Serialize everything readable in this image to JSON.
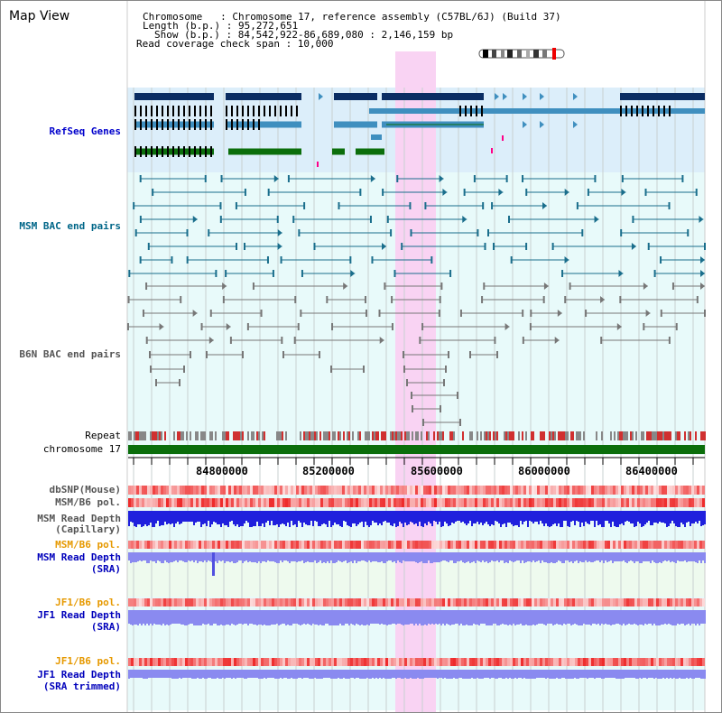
{
  "title": "Map View",
  "info": {
    "chromosome_line": "Chromosome   : Chromosome 17, reference assembly (C57BL/6J) (Build 37)",
    "length_line": "Length (b.p.) : 95,272,651",
    "show_line": "Show (b.p.) : 84,542,922-86,689,080 : 2,146,159 bp",
    "coverage_line": "Read coverage check span : 10,000"
  },
  "tracks": {
    "refseq": "RefSeq Genes",
    "msm_bac": "MSM BAC end pairs",
    "b6n_bac": "B6N BAC end pairs",
    "repeat": "Repeat",
    "chromosome": "chromosome 17",
    "dbsnp": "dbSNP(Mouse)",
    "msm_b6_pol": "MSM/B6 pol.",
    "msm_depth_cap_1": "MSM Read Depth",
    "msm_depth_cap_2": "(Capillary)",
    "msm_b6_pol_2": "MSM/B6 pol.",
    "msm_depth_sra_1": "MSM Read Depth",
    "msm_depth_sra_2": "(SRA)",
    "jf1_b6_pol": "JF1/B6 pol.",
    "jf1_depth_sra_1": "JF1 Read Depth",
    "jf1_depth_sra_2": "(SRA)",
    "jf1_b6_pol_2": "JF1/B6 pol.",
    "jf1_depth_trim_1": "JF1 Read Depth",
    "jf1_depth_trim_2": "(SRA trimmed)"
  },
  "axis_ticks": [
    "84800000",
    "85200000",
    "85600000",
    "86000000",
    "86400000"
  ],
  "colors": {
    "refseq_bg": "#dceefa",
    "track_bg": "#e8fafa",
    "highlight": "#f9d3f3",
    "gene_dark": "#0b2d63",
    "gene_mid": "#3f8fbf",
    "gene_green": "#0b6e0b",
    "msm_bac": "#1a6e8c",
    "b6n_bac": "#777777",
    "chrom": "#0b6e0b",
    "pol_red": "#e83030",
    "depth_blue": "#2020dd",
    "depth_light": "#8a8af0"
  }
}
